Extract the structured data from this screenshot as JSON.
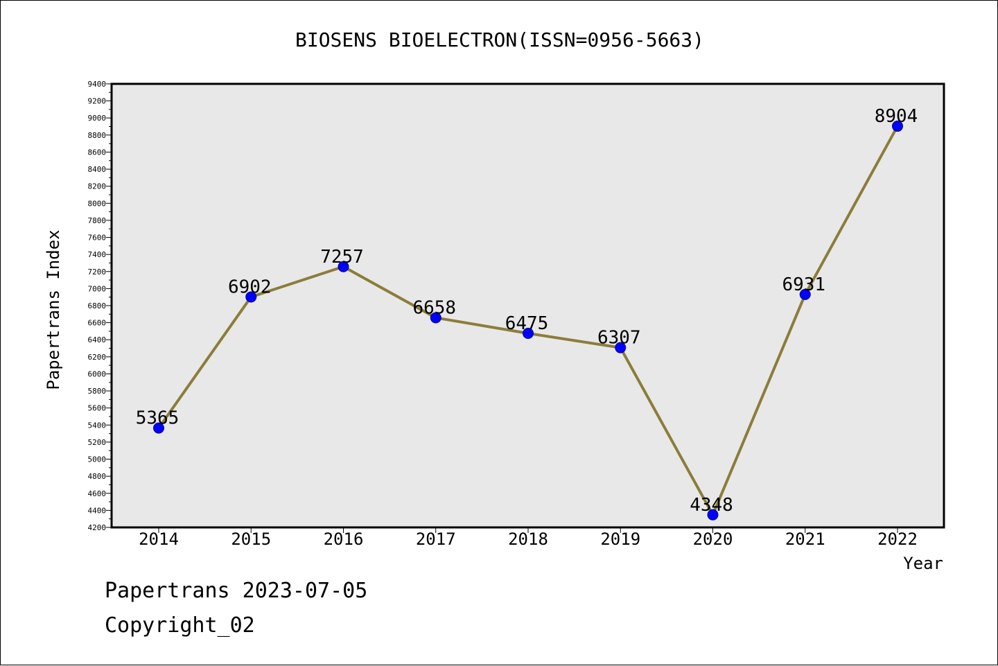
{
  "chart_data": {
    "type": "line",
    "title": "BIOSENS BIOELECTRON(ISSN=0956-5663)",
    "xlabel": "Year",
    "ylabel": "Papertrans Index",
    "categories": [
      "2014",
      "2015",
      "2016",
      "2017",
      "2018",
      "2019",
      "2020",
      "2021",
      "2022"
    ],
    "series": [
      {
        "values": [
          5365,
          6902,
          7257,
          6658,
          6475,
          6307,
          4348,
          6931,
          8904
        ]
      }
    ],
    "data_labels": [
      "5365",
      "6902",
      "7257",
      "6658",
      "6475",
      "6307",
      "4348",
      "6931",
      "8904"
    ],
    "ylim": [
      4200,
      9400
    ],
    "y_major_step": 200,
    "y_tick_labels": [
      "4200",
      "4400",
      "4600",
      "4800",
      "5000",
      "5200",
      "5400",
      "5600",
      "5800",
      "6000",
      "6200",
      "6400",
      "6600",
      "6800",
      "7000",
      "7200",
      "7400",
      "7600",
      "7800",
      "8000",
      "8200",
      "8400",
      "8600",
      "8800",
      "9000",
      "9200",
      "9400"
    ],
    "grid": false,
    "colors": {
      "plot_background": "#e8e8e8",
      "line": "#8b7d3a",
      "marker": "#0000ff",
      "marker_edge": "#00008b",
      "axis": "#000000"
    }
  },
  "footer": {
    "date_line": "Papertrans 2023-07-05",
    "copyright_line": "Copyright_02"
  }
}
